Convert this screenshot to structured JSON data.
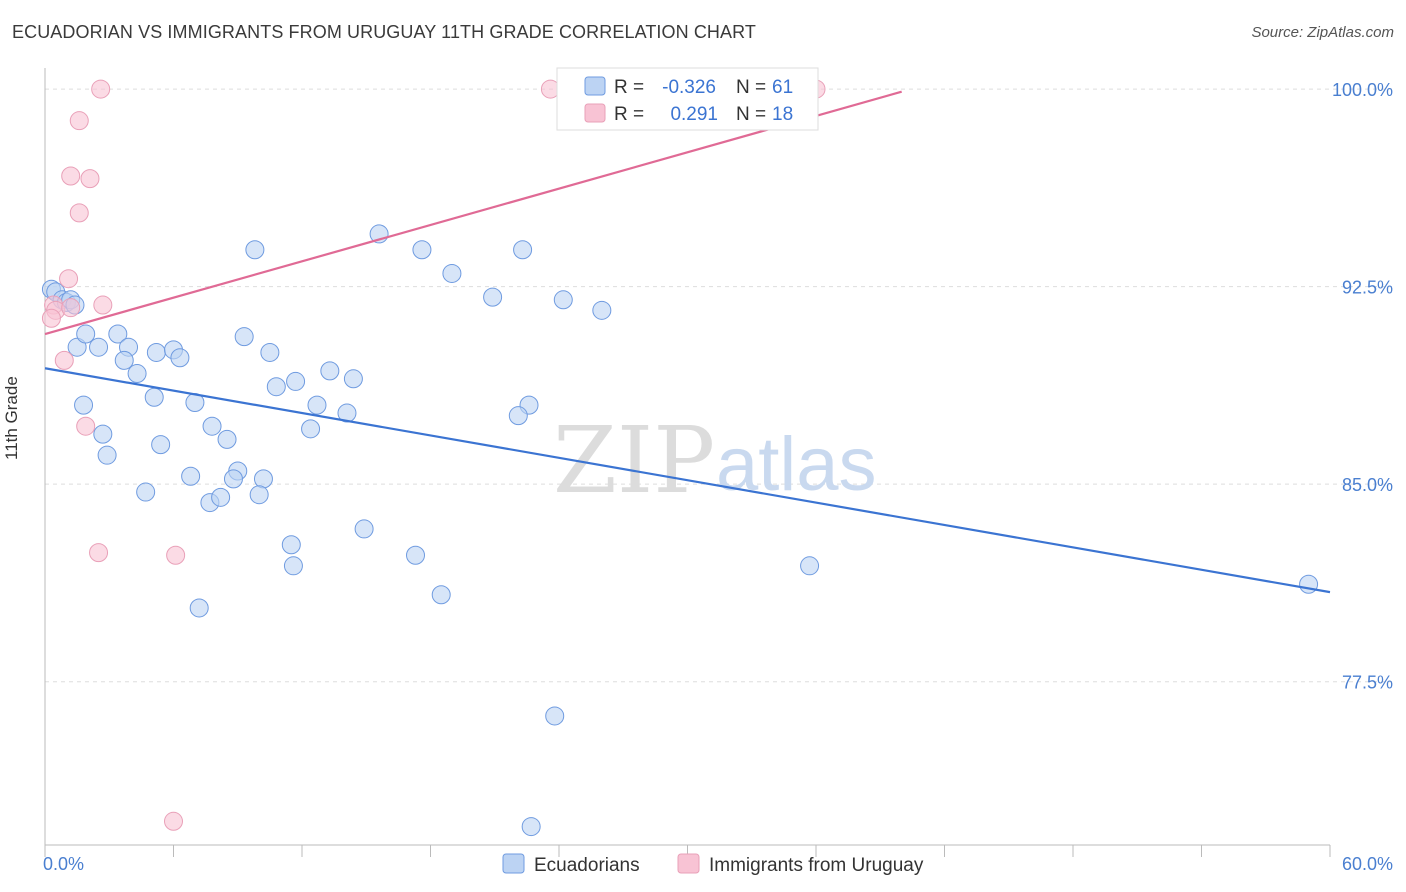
{
  "title": "ECUADORIAN VS IMMIGRANTS FROM URUGUAY 11TH GRADE CORRELATION CHART",
  "source": "Source: ZipAtlas.com",
  "watermark": {
    "zip": "ZIP",
    "atlas": "atlas"
  },
  "colors": {
    "blue": "#3b74d2",
    "blue_fill": "#bcd3f3",
    "pink": "#e06a95",
    "pink_fill": "#f8c3d4",
    "grid": "#dddddd"
  },
  "stats": [
    {
      "r_label": "R =",
      "r_value": "-0.326",
      "n_label": "N =",
      "n_value": "61"
    },
    {
      "r_label": "R =",
      "r_value": "0.291",
      "n_label": "N =",
      "n_value": "18"
    }
  ],
  "chart_data": {
    "type": "scatter",
    "title": "ECUADORIAN VS IMMIGRANTS FROM URUGUAY 11TH GRADE CORRELATION CHART",
    "xlabel": "",
    "ylabel": "11th Grade",
    "xlim": [
      0,
      60
    ],
    "ylim": [
      71.3,
      100.8
    ],
    "x_tick_labels": [
      {
        "value": 0,
        "label": "0.0%"
      },
      {
        "value": 60,
        "label": "60.0%"
      }
    ],
    "y_ticks": [
      {
        "value": 100,
        "label": "100.0%"
      },
      {
        "value": 92.5,
        "label": "92.5%"
      },
      {
        "value": 85,
        "label": "85.0%"
      },
      {
        "value": 77.5,
        "label": "77.5%"
      }
    ],
    "grid": true,
    "legend": "bottom-center",
    "series": [
      {
        "name": "Ecuadorians",
        "color": "#3b74d2",
        "trend": {
          "x1": 0,
          "y1": 89.4,
          "x2": 60,
          "y2": 80.9
        },
        "points": [
          [
            0.3,
            92.4
          ],
          [
            0.5,
            92.3
          ],
          [
            0.8,
            92.0
          ],
          [
            1.0,
            91.9
          ],
          [
            1.2,
            92.0
          ],
          [
            1.4,
            91.8
          ],
          [
            1.5,
            90.2
          ],
          [
            1.9,
            90.7
          ],
          [
            2.5,
            90.2
          ],
          [
            3.4,
            90.7
          ],
          [
            3.9,
            90.2
          ],
          [
            5.2,
            90.0
          ],
          [
            6.0,
            90.1
          ],
          [
            6.3,
            89.8
          ],
          [
            3.7,
            89.7
          ],
          [
            4.3,
            89.2
          ],
          [
            1.8,
            88.0
          ],
          [
            5.1,
            88.3
          ],
          [
            7.0,
            88.1
          ],
          [
            2.7,
            86.9
          ],
          [
            2.9,
            86.1
          ],
          [
            5.4,
            86.5
          ],
          [
            7.8,
            87.2
          ],
          [
            8.5,
            86.7
          ],
          [
            9.3,
            90.6
          ],
          [
            10.5,
            90.0
          ],
          [
            10.8,
            88.7
          ],
          [
            11.7,
            88.9
          ],
          [
            13.3,
            89.3
          ],
          [
            14.4,
            89.0
          ],
          [
            12.7,
            88.0
          ],
          [
            14.1,
            87.7
          ],
          [
            12.4,
            87.1
          ],
          [
            6.8,
            85.3
          ],
          [
            9.0,
            85.5
          ],
          [
            8.8,
            85.2
          ],
          [
            10.2,
            85.2
          ],
          [
            4.7,
            84.7
          ],
          [
            7.7,
            84.3
          ],
          [
            8.2,
            84.5
          ],
          [
            10.0,
            84.6
          ],
          [
            11.5,
            82.7
          ],
          [
            11.6,
            81.9
          ],
          [
            14.9,
            83.3
          ],
          [
            17.3,
            82.3
          ],
          [
            18.5,
            80.8
          ],
          [
            7.2,
            80.3
          ],
          [
            9.8,
            93.9
          ],
          [
            15.6,
            94.5
          ],
          [
            17.6,
            93.9
          ],
          [
            19.0,
            93.0
          ],
          [
            20.9,
            92.1
          ],
          [
            22.3,
            93.9
          ],
          [
            24.2,
            92.0
          ],
          [
            26.0,
            91.6
          ],
          [
            22.6,
            88.0
          ],
          [
            22.1,
            87.6
          ],
          [
            23.8,
            76.2
          ],
          [
            22.7,
            72.0
          ],
          [
            35.7,
            81.9
          ],
          [
            59.0,
            81.2
          ]
        ]
      },
      {
        "name": "Immigrants from Uruguay",
        "color": "#e06a95",
        "trend": {
          "x1": 0,
          "y1": 90.7,
          "x2": 40,
          "y2": 99.9
        },
        "points": [
          [
            2.6,
            100.0
          ],
          [
            23.6,
            100.0
          ],
          [
            36.0,
            100.0
          ],
          [
            1.6,
            98.8
          ],
          [
            1.2,
            96.7
          ],
          [
            2.1,
            96.6
          ],
          [
            1.6,
            95.3
          ],
          [
            1.1,
            92.8
          ],
          [
            0.4,
            91.8
          ],
          [
            0.5,
            91.6
          ],
          [
            1.2,
            91.7
          ],
          [
            2.7,
            91.8
          ],
          [
            0.9,
            89.7
          ],
          [
            1.9,
            87.2
          ],
          [
            2.5,
            82.4
          ],
          [
            6.1,
            82.3
          ],
          [
            6.0,
            72.2
          ],
          [
            0.3,
            91.3
          ]
        ]
      }
    ]
  }
}
